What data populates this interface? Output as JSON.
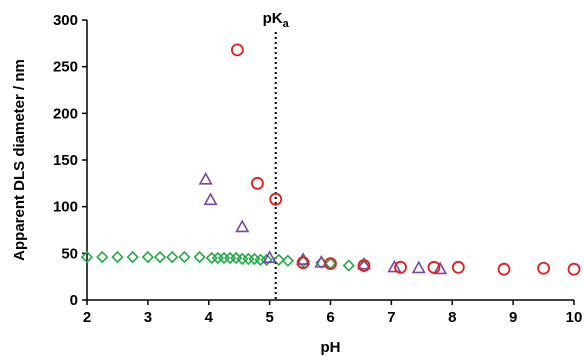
{
  "chart_data": {
    "type": "scatter",
    "xlabel": "pH",
    "ylabel": "Apparent DLS diameter / nm",
    "xlim": [
      2,
      10
    ],
    "ylim": [
      0,
      300
    ],
    "xticks": [
      2,
      3,
      4,
      5,
      6,
      7,
      8,
      9,
      10
    ],
    "yticks": [
      0,
      50,
      100,
      150,
      200,
      250,
      300
    ],
    "grid": false,
    "legend": "none",
    "annotations": [
      {
        "text": "pK",
        "subscript": "a",
        "x": 5.1,
        "line": "vertical-dotted"
      }
    ],
    "series": [
      {
        "marker": "diamond",
        "color": "#22aa44",
        "points": [
          [
            2.0,
            46
          ],
          [
            2.25,
            46
          ],
          [
            2.5,
            46
          ],
          [
            2.75,
            46
          ],
          [
            3.0,
            46
          ],
          [
            3.2,
            46
          ],
          [
            3.4,
            46
          ],
          [
            3.6,
            46
          ],
          [
            3.85,
            46
          ],
          [
            4.05,
            45
          ],
          [
            4.15,
            45
          ],
          [
            4.25,
            45
          ],
          [
            4.35,
            45
          ],
          [
            4.45,
            45
          ],
          [
            4.55,
            44
          ],
          [
            4.65,
            44
          ],
          [
            4.75,
            44
          ],
          [
            4.85,
            43
          ],
          [
            4.95,
            43
          ],
          [
            5.15,
            43
          ],
          [
            5.3,
            42
          ],
          [
            5.55,
            41
          ],
          [
            5.85,
            40
          ],
          [
            6.0,
            39
          ],
          [
            6.3,
            37
          ],
          [
            6.55,
            36
          ]
        ]
      },
      {
        "marker": "triangle",
        "color": "#7744aa",
        "points": [
          [
            3.95,
            129
          ],
          [
            4.03,
            107
          ],
          [
            4.55,
            78
          ],
          [
            5.0,
            45
          ],
          [
            5.55,
            43
          ],
          [
            5.85,
            40
          ],
          [
            6.55,
            38
          ],
          [
            7.05,
            35
          ],
          [
            7.45,
            34
          ],
          [
            7.8,
            33
          ]
        ]
      },
      {
        "marker": "circle",
        "color": "#e02020",
        "points": [
          [
            4.47,
            268
          ],
          [
            4.8,
            125
          ],
          [
            5.1,
            108
          ],
          [
            5.55,
            40
          ],
          [
            6.0,
            39
          ],
          [
            6.55,
            37
          ],
          [
            7.15,
            35
          ],
          [
            7.7,
            35
          ],
          [
            8.1,
            35
          ],
          [
            8.85,
            33
          ],
          [
            9.5,
            34
          ],
          [
            10.0,
            33
          ]
        ]
      }
    ]
  }
}
